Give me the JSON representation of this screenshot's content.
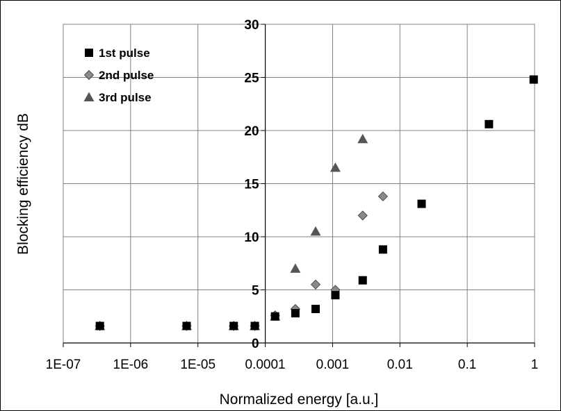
{
  "chart_data": {
    "type": "scatter",
    "title": "",
    "xlabel": "Normalized energy [a.u.]",
    "ylabel": "Blocking efficiency dB",
    "xscale": "log",
    "xlim": [
      1e-07,
      1
    ],
    "ylim": [
      0,
      30
    ],
    "xticks": [
      {
        "value": 1e-07,
        "label": "1E-07"
      },
      {
        "value": 1e-06,
        "label": "1E-06"
      },
      {
        "value": 1e-05,
        "label": "1E-05"
      },
      {
        "value": 0.0001,
        "label": "0.0001"
      },
      {
        "value": 0.001,
        "label": "0.001"
      },
      {
        "value": 0.01,
        "label": "0.01"
      },
      {
        "value": 0.1,
        "label": "0.1"
      },
      {
        "value": 1,
        "label": "1"
      }
    ],
    "yticks": [
      {
        "value": 0,
        "label": "0"
      },
      {
        "value": 5,
        "label": "5"
      },
      {
        "value": 10,
        "label": "10"
      },
      {
        "value": 15,
        "label": "15"
      },
      {
        "value": 20,
        "label": "20"
      },
      {
        "value": 25,
        "label": "25"
      },
      {
        "value": 30,
        "label": "30"
      }
    ],
    "grid": true,
    "legend_position": "top-left",
    "series": [
      {
        "name": "1st pulse",
        "marker": "square",
        "color": "#000000",
        "points": [
          {
            "x": 3.5e-07,
            "y": 1.6
          },
          {
            "x": 6.8e-06,
            "y": 1.6
          },
          {
            "x": 3.4e-05,
            "y": 1.6
          },
          {
            "x": 7e-05,
            "y": 1.6
          },
          {
            "x": 0.00014,
            "y": 2.5
          },
          {
            "x": 0.00028,
            "y": 2.8
          },
          {
            "x": 0.00056,
            "y": 3.2
          },
          {
            "x": 0.0011,
            "y": 4.5
          },
          {
            "x": 0.0028,
            "y": 5.9
          },
          {
            "x": 0.0056,
            "y": 8.8
          },
          {
            "x": 0.021,
            "y": 13.1
          },
          {
            "x": 0.21,
            "y": 20.6
          },
          {
            "x": 0.97,
            "y": 24.8
          }
        ]
      },
      {
        "name": "2nd pulse",
        "marker": "diamond",
        "color": "#8a8a8a",
        "points": [
          {
            "x": 3.5e-07,
            "y": 1.6
          },
          {
            "x": 6.8e-06,
            "y": 1.6
          },
          {
            "x": 3.4e-05,
            "y": 1.6
          },
          {
            "x": 7e-05,
            "y": 1.6
          },
          {
            "x": 0.00014,
            "y": 2.6
          },
          {
            "x": 0.00028,
            "y": 3.2
          },
          {
            "x": 0.00056,
            "y": 5.5
          },
          {
            "x": 0.0011,
            "y": 5.0
          },
          {
            "x": 0.0028,
            "y": 12.0
          },
          {
            "x": 0.0056,
            "y": 13.8
          }
        ]
      },
      {
        "name": "3rd pulse",
        "marker": "triangle",
        "color": "#555555",
        "points": [
          {
            "x": 3.5e-07,
            "y": 1.6
          },
          {
            "x": 6.8e-06,
            "y": 1.6
          },
          {
            "x": 3.4e-05,
            "y": 1.6
          },
          {
            "x": 7e-05,
            "y": 1.6
          },
          {
            "x": 0.00014,
            "y": 2.5
          },
          {
            "x": 0.00028,
            "y": 7.0
          },
          {
            "x": 0.00056,
            "y": 10.5
          },
          {
            "x": 0.0011,
            "y": 16.5
          },
          {
            "x": 0.0028,
            "y": 19.2
          }
        ]
      }
    ]
  }
}
